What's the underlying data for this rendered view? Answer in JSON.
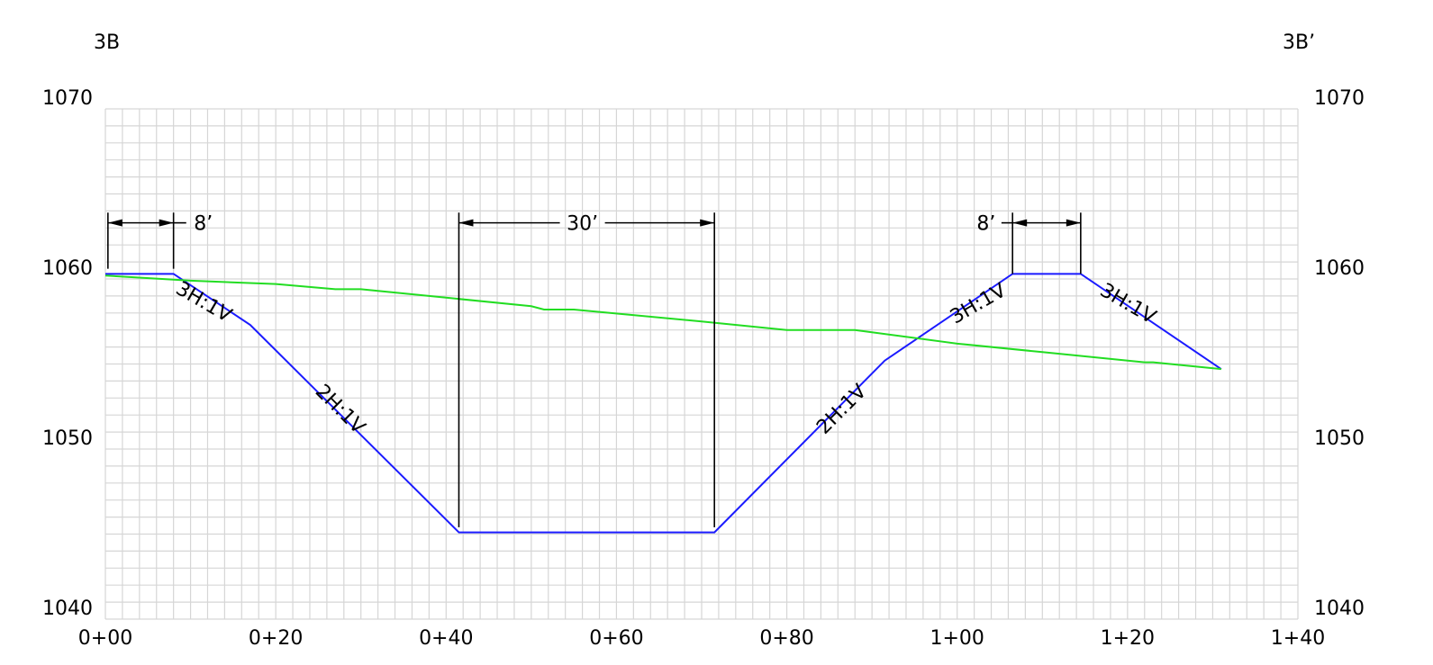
{
  "section": {
    "left_label": "3B",
    "right_label": "3B’"
  },
  "chart_data": {
    "type": "line",
    "x_unit": "station (ft)",
    "y_unit": "elevation (ft)",
    "xlim": [
      0,
      140
    ],
    "ylim": [
      1040,
      1070
    ],
    "grid": true,
    "x_ticks": [
      {
        "value": 0,
        "label": "0+00"
      },
      {
        "value": 20,
        "label": "0+20"
      },
      {
        "value": 40,
        "label": "0+40"
      },
      {
        "value": 60,
        "label": "0+60"
      },
      {
        "value": 80,
        "label": "0+80"
      },
      {
        "value": 100,
        "label": "1+00"
      },
      {
        "value": 120,
        "label": "1+20"
      },
      {
        "value": 140,
        "label": "1+40"
      }
    ],
    "y_ticks": [
      {
        "value": 1040,
        "label": "1040"
      },
      {
        "value": 1050,
        "label": "1050"
      },
      {
        "value": 1060,
        "label": "1060"
      },
      {
        "value": 1070,
        "label": "1070"
      }
    ],
    "series": [
      {
        "key": "design",
        "color": "#1a1aff",
        "points": [
          [
            0,
            1060.3
          ],
          [
            8,
            1060.3
          ],
          [
            17,
            1057.3
          ],
          [
            41.5,
            1045.1
          ],
          [
            71.5,
            1045.1
          ],
          [
            91.5,
            1055.2
          ],
          [
            106.5,
            1060.3
          ],
          [
            114.5,
            1060.3
          ],
          [
            131,
            1054.7
          ]
        ]
      },
      {
        "key": "existing",
        "color": "#22dd22",
        "points": [
          [
            0,
            1060.2
          ],
          [
            10,
            1059.9
          ],
          [
            20,
            1059.7
          ],
          [
            27,
            1059.4
          ],
          [
            30,
            1059.4
          ],
          [
            40,
            1058.9
          ],
          [
            50,
            1058.4
          ],
          [
            51.5,
            1058.2
          ],
          [
            55,
            1058.2
          ],
          [
            70,
            1057.5
          ],
          [
            80,
            1057.0
          ],
          [
            88,
            1057.0
          ],
          [
            100,
            1056.2
          ],
          [
            110,
            1055.7
          ],
          [
            122,
            1055.1
          ],
          [
            123,
            1055.1
          ],
          [
            131,
            1054.7
          ]
        ]
      }
    ],
    "slope_labels": [
      {
        "text": "3H:1V",
        "x": 11.5,
        "y": 1058.6,
        "angle": 30
      },
      {
        "text": "2H:1V",
        "x": 27.5,
        "y": 1052.3,
        "angle": 45
      },
      {
        "text": "2H:1V",
        "x": 86.5,
        "y": 1052.3,
        "angle": -45
      },
      {
        "text": "3H:1V",
        "x": 102.5,
        "y": 1058.5,
        "angle": -30
      },
      {
        "text": "3H:1V",
        "x": 120,
        "y": 1058.5,
        "angle": 30
      }
    ],
    "dimensions": [
      {
        "text": "8’",
        "x1": 0.3,
        "x2": 8,
        "y": 1063.3,
        "ext_top": 1063.9,
        "ext_bottom": 1060.6,
        "label_x": 11.5,
        "label_anchor": "middle"
      },
      {
        "text": "30’",
        "x1": 41.5,
        "x2": 71.5,
        "y": 1063.3,
        "ext_top": 1063.9,
        "ext_bottom": 1045.4,
        "label_x": 56.0,
        "label_anchor": "middle"
      },
      {
        "text": "8’",
        "x1": 106.5,
        "x2": 114.5,
        "y": 1063.3,
        "ext_top": 1063.9,
        "ext_bottom": 1060.3,
        "label_x": 103.4,
        "label_anchor": "middle"
      }
    ]
  }
}
